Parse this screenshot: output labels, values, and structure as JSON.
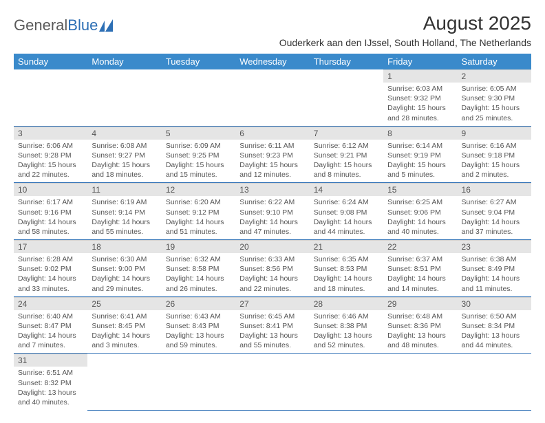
{
  "brand": {
    "name_a": "General",
    "name_b": "Blue"
  },
  "title": "August 2025",
  "location": "Ouderkerk aan den IJssel, South Holland, The Netherlands",
  "colors": {
    "header_bg": "#3a8acb",
    "header_text": "#ffffff",
    "daynum_bg": "#e5e5e5",
    "border": "#2d6fb5",
    "text": "#555555"
  },
  "typography": {
    "title_fontsize": 28,
    "location_fontsize": 14,
    "dayhead_fontsize": 13,
    "daynum_fontsize": 12,
    "data_fontsize": 10.5
  },
  "calendar": {
    "type": "table",
    "columns": [
      "Sunday",
      "Monday",
      "Tuesday",
      "Wednesday",
      "Thursday",
      "Friday",
      "Saturday"
    ],
    "weeks": [
      [
        null,
        null,
        null,
        null,
        null,
        {
          "n": "1",
          "sr": "Sunrise: 6:03 AM",
          "ss": "Sunset: 9:32 PM",
          "dl": "Daylight: 15 hours and 28 minutes."
        },
        {
          "n": "2",
          "sr": "Sunrise: 6:05 AM",
          "ss": "Sunset: 9:30 PM",
          "dl": "Daylight: 15 hours and 25 minutes."
        }
      ],
      [
        {
          "n": "3",
          "sr": "Sunrise: 6:06 AM",
          "ss": "Sunset: 9:28 PM",
          "dl": "Daylight: 15 hours and 22 minutes."
        },
        {
          "n": "4",
          "sr": "Sunrise: 6:08 AM",
          "ss": "Sunset: 9:27 PM",
          "dl": "Daylight: 15 hours and 18 minutes."
        },
        {
          "n": "5",
          "sr": "Sunrise: 6:09 AM",
          "ss": "Sunset: 9:25 PM",
          "dl": "Daylight: 15 hours and 15 minutes."
        },
        {
          "n": "6",
          "sr": "Sunrise: 6:11 AM",
          "ss": "Sunset: 9:23 PM",
          "dl": "Daylight: 15 hours and 12 minutes."
        },
        {
          "n": "7",
          "sr": "Sunrise: 6:12 AM",
          "ss": "Sunset: 9:21 PM",
          "dl": "Daylight: 15 hours and 8 minutes."
        },
        {
          "n": "8",
          "sr": "Sunrise: 6:14 AM",
          "ss": "Sunset: 9:19 PM",
          "dl": "Daylight: 15 hours and 5 minutes."
        },
        {
          "n": "9",
          "sr": "Sunrise: 6:16 AM",
          "ss": "Sunset: 9:18 PM",
          "dl": "Daylight: 15 hours and 2 minutes."
        }
      ],
      [
        {
          "n": "10",
          "sr": "Sunrise: 6:17 AM",
          "ss": "Sunset: 9:16 PM",
          "dl": "Daylight: 14 hours and 58 minutes."
        },
        {
          "n": "11",
          "sr": "Sunrise: 6:19 AM",
          "ss": "Sunset: 9:14 PM",
          "dl": "Daylight: 14 hours and 55 minutes."
        },
        {
          "n": "12",
          "sr": "Sunrise: 6:20 AM",
          "ss": "Sunset: 9:12 PM",
          "dl": "Daylight: 14 hours and 51 minutes."
        },
        {
          "n": "13",
          "sr": "Sunrise: 6:22 AM",
          "ss": "Sunset: 9:10 PM",
          "dl": "Daylight: 14 hours and 47 minutes."
        },
        {
          "n": "14",
          "sr": "Sunrise: 6:24 AM",
          "ss": "Sunset: 9:08 PM",
          "dl": "Daylight: 14 hours and 44 minutes."
        },
        {
          "n": "15",
          "sr": "Sunrise: 6:25 AM",
          "ss": "Sunset: 9:06 PM",
          "dl": "Daylight: 14 hours and 40 minutes."
        },
        {
          "n": "16",
          "sr": "Sunrise: 6:27 AM",
          "ss": "Sunset: 9:04 PM",
          "dl": "Daylight: 14 hours and 37 minutes."
        }
      ],
      [
        {
          "n": "17",
          "sr": "Sunrise: 6:28 AM",
          "ss": "Sunset: 9:02 PM",
          "dl": "Daylight: 14 hours and 33 minutes."
        },
        {
          "n": "18",
          "sr": "Sunrise: 6:30 AM",
          "ss": "Sunset: 9:00 PM",
          "dl": "Daylight: 14 hours and 29 minutes."
        },
        {
          "n": "19",
          "sr": "Sunrise: 6:32 AM",
          "ss": "Sunset: 8:58 PM",
          "dl": "Daylight: 14 hours and 26 minutes."
        },
        {
          "n": "20",
          "sr": "Sunrise: 6:33 AM",
          "ss": "Sunset: 8:56 PM",
          "dl": "Daylight: 14 hours and 22 minutes."
        },
        {
          "n": "21",
          "sr": "Sunrise: 6:35 AM",
          "ss": "Sunset: 8:53 PM",
          "dl": "Daylight: 14 hours and 18 minutes."
        },
        {
          "n": "22",
          "sr": "Sunrise: 6:37 AM",
          "ss": "Sunset: 8:51 PM",
          "dl": "Daylight: 14 hours and 14 minutes."
        },
        {
          "n": "23",
          "sr": "Sunrise: 6:38 AM",
          "ss": "Sunset: 8:49 PM",
          "dl": "Daylight: 14 hours and 11 minutes."
        }
      ],
      [
        {
          "n": "24",
          "sr": "Sunrise: 6:40 AM",
          "ss": "Sunset: 8:47 PM",
          "dl": "Daylight: 14 hours and 7 minutes."
        },
        {
          "n": "25",
          "sr": "Sunrise: 6:41 AM",
          "ss": "Sunset: 8:45 PM",
          "dl": "Daylight: 14 hours and 3 minutes."
        },
        {
          "n": "26",
          "sr": "Sunrise: 6:43 AM",
          "ss": "Sunset: 8:43 PM",
          "dl": "Daylight: 13 hours and 59 minutes."
        },
        {
          "n": "27",
          "sr": "Sunrise: 6:45 AM",
          "ss": "Sunset: 8:41 PM",
          "dl": "Daylight: 13 hours and 55 minutes."
        },
        {
          "n": "28",
          "sr": "Sunrise: 6:46 AM",
          "ss": "Sunset: 8:38 PM",
          "dl": "Daylight: 13 hours and 52 minutes."
        },
        {
          "n": "29",
          "sr": "Sunrise: 6:48 AM",
          "ss": "Sunset: 8:36 PM",
          "dl": "Daylight: 13 hours and 48 minutes."
        },
        {
          "n": "30",
          "sr": "Sunrise: 6:50 AM",
          "ss": "Sunset: 8:34 PM",
          "dl": "Daylight: 13 hours and 44 minutes."
        }
      ],
      [
        {
          "n": "31",
          "sr": "Sunrise: 6:51 AM",
          "ss": "Sunset: 8:32 PM",
          "dl": "Daylight: 13 hours and 40 minutes."
        },
        null,
        null,
        null,
        null,
        null,
        null
      ]
    ]
  }
}
